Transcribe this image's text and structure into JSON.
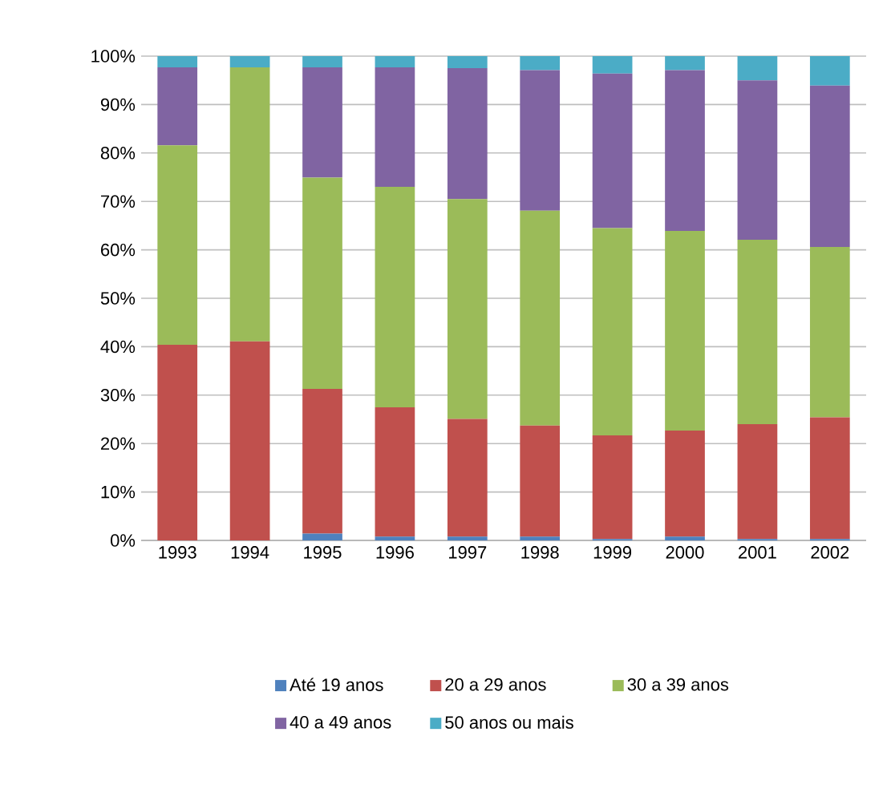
{
  "chart_data": {
    "type": "bar",
    "stacked": true,
    "categories": [
      "1993",
      "1994",
      "1995",
      "1996",
      "1997",
      "1998",
      "1999",
      "2000",
      "2001",
      "2002"
    ],
    "series": [
      {
        "name": "Até 19 anos",
        "color": "#4f81bd",
        "values": [
          0,
          0,
          1.4,
          0.8,
          0.8,
          0.8,
          0.3,
          0.8,
          0.3,
          0.3
        ]
      },
      {
        "name": "20 a 29 anos",
        "color": "#c0504d",
        "values": [
          40.4,
          41.1,
          29.9,
          26.7,
          24.3,
          22.9,
          21.4,
          21.9,
          23.7,
          25.1
        ]
      },
      {
        "name": "30 a 39 anos",
        "color": "#9bbb59",
        "values": [
          41.2,
          56.6,
          43.6,
          45.5,
          45.4,
          44.4,
          42.8,
          41.2,
          38.1,
          35.2
        ]
      },
      {
        "name": "40 a 49 anos",
        "color": "#8064a2",
        "values": [
          16.1,
          0,
          22.8,
          24.7,
          27.0,
          29.0,
          31.9,
          33.2,
          32.9,
          33.3
        ]
      },
      {
        "name": "50 anos ou mais",
        "color": "#4bacc6",
        "values": [
          2.3,
          2.3,
          2.3,
          2.3,
          2.5,
          2.9,
          3.6,
          2.9,
          5.0,
          6.1
        ]
      }
    ],
    "ylim": [
      0,
      100
    ],
    "yticks": [
      {
        "value": 0,
        "label": "0%"
      },
      {
        "value": 10,
        "label": "10%"
      },
      {
        "value": 20,
        "label": "20%"
      },
      {
        "value": 30,
        "label": "30%"
      },
      {
        "value": 40,
        "label": "40%"
      },
      {
        "value": 50,
        "label": "50%"
      },
      {
        "value": 60,
        "label": "60%"
      },
      {
        "value": 70,
        "label": "70%"
      },
      {
        "value": 80,
        "label": "80%"
      },
      {
        "value": 90,
        "label": "90%"
      },
      {
        "value": 100,
        "label": "100%"
      }
    ],
    "grid": "y",
    "legend": "bottom"
  }
}
